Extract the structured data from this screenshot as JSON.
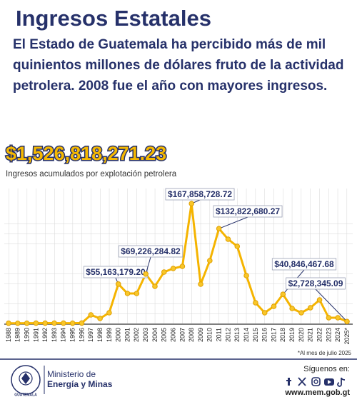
{
  "header": {
    "title": "Ingresos Estatales",
    "subtitle": "El Estado de Guatemala ha percibido más de mil quinientos millones de dólares fruto de la actividad petrolera. 2008 fue el año con mayores ingresos."
  },
  "chart_data": {
    "type": "line",
    "total_label": "$1,526,818,271.23",
    "title": "Ingresos acumulados por explotación petrolera",
    "categories": [
      "1988",
      "1989",
      "1990",
      "1991",
      "1992",
      "1993",
      "1994",
      "1995",
      "1996",
      "1997",
      "1998",
      "1999",
      "2000",
      "2001",
      "2002",
      "2003",
      "2004",
      "2005",
      "2006",
      "2007",
      "2008",
      "2009",
      "2010",
      "2011",
      "2012",
      "2013",
      "2014",
      "2015",
      "2016",
      "2017",
      "2018",
      "2019",
      "2020",
      "2021",
      "2022",
      "2023",
      "2024",
      "2025*"
    ],
    "values": [
      300000,
      250000,
      350000,
      400000,
      450000,
      500000,
      400000,
      350000,
      600000,
      12000000,
      7000000,
      15000000,
      55163179.2,
      42000000,
      42000000,
      69226284.82,
      52000000,
      72000000,
      77000000,
      80000000,
      167858728.72,
      55000000,
      88000000,
      132822680.27,
      118000000,
      108000000,
      67000000,
      29000000,
      15000000,
      24000000,
      40846467.68,
      21000000,
      15000000,
      22000000,
      33000000,
      8000000,
      8000000,
      2728345.09
    ],
    "value_labels": [
      null,
      null,
      null,
      null,
      null,
      null,
      null,
      null,
      null,
      null,
      null,
      null,
      "$55,163,179.20",
      null,
      null,
      "$69,226,284.82",
      null,
      null,
      null,
      null,
      "$167,858,728.72",
      null,
      null,
      "$132,822,680.27",
      null,
      null,
      null,
      null,
      null,
      null,
      "$40,846,467.68",
      null,
      null,
      null,
      null,
      null,
      null,
      "$2,728,345.09"
    ],
    "color": "#f5b400",
    "ylim": [
      0,
      185000000
    ],
    "grid": true,
    "note": "*Al mes de julio 2025"
  },
  "footer": {
    "logo_text": "GUATEMALA",
    "ministry_line1": "Ministerio de",
    "ministry_line2": "Energía y Minas",
    "follow": "Síguenos en:",
    "url": "www.mem.gob.gt"
  }
}
